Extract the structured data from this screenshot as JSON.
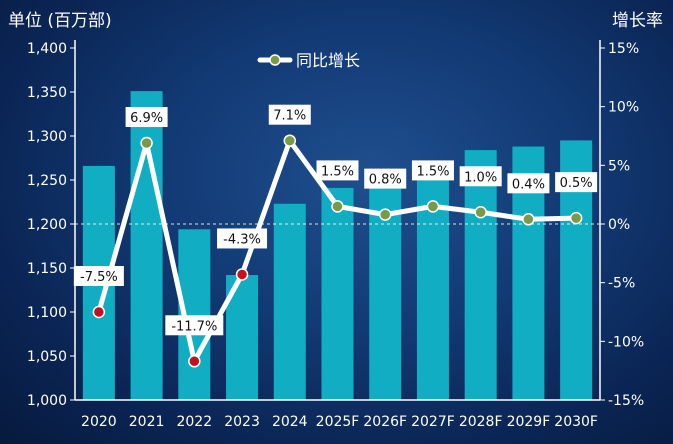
{
  "chart_data": {
    "type": "bar",
    "ylabel": "单位 (百万部)",
    "y2label": "增长率",
    "legend": {
      "label": "同比增长",
      "position": "top-center"
    },
    "categories": [
      "2020",
      "2021",
      "2022",
      "2023",
      "2024",
      "2025F",
      "2026F",
      "2027F",
      "2028F",
      "2029F",
      "2030F"
    ],
    "ylim": [
      1000,
      1400
    ],
    "yticks": [
      "1,000",
      "1,050",
      "1,100",
      "1,150",
      "1,200",
      "1,250",
      "1,300",
      "1,350",
      "1,400"
    ],
    "y2lim": [
      -15,
      15
    ],
    "y2ticks": [
      "-15%",
      "-10%",
      "-5%",
      "0%",
      "5%",
      "10%",
      "15%"
    ],
    "series": [
      {
        "type": "bar",
        "values": [
          1266,
          1351,
          1194,
          1142,
          1223,
          1241,
          1250,
          1271,
          1284,
          1288,
          1295
        ]
      },
      {
        "type": "line",
        "name": "同比增长",
        "values": [
          -7.5,
          6.9,
          -11.7,
          -4.3,
          7.1,
          1.5,
          0.8,
          1.5,
          1.0,
          0.4,
          0.5
        ],
        "labels": [
          "-7.5%",
          "6.9%",
          "-11.7%",
          "-4.3%",
          "7.1%",
          "1.5%",
          "0.8%",
          "1.5%",
          "1.0%",
          "0.4%",
          "0.5%"
        ]
      }
    ],
    "colors": {
      "bar": "#11aec3",
      "line": "#ffffff",
      "marker_negative": "#c2121e",
      "marker_positive": "#7a9a48"
    }
  }
}
